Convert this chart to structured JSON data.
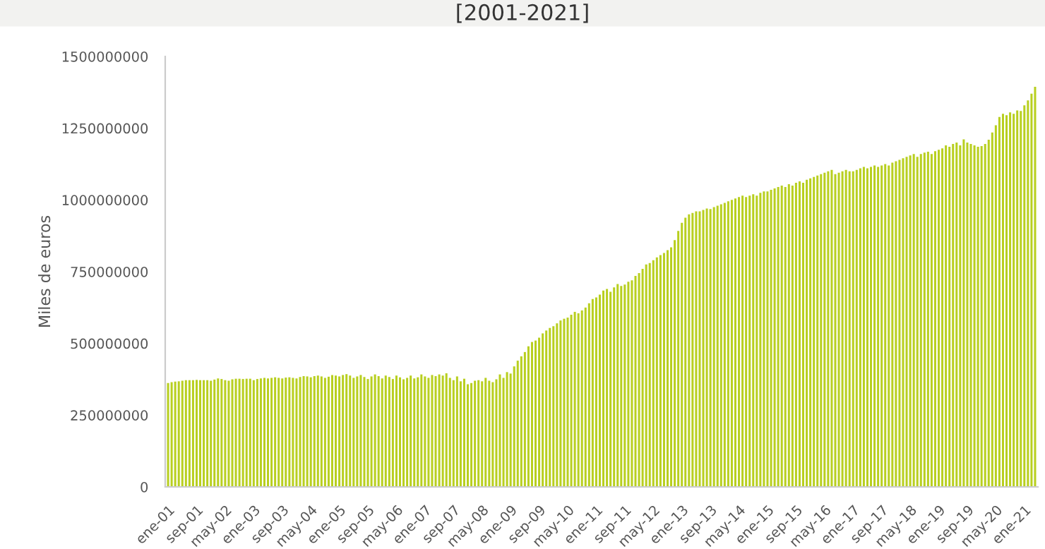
{
  "chart_data": {
    "type": "bar",
    "title": "[2001-2021]",
    "ylabel": "Miles de euros",
    "categories": [
      "ene-01",
      null,
      null,
      null,
      null,
      null,
      null,
      null,
      "sep-01",
      null,
      null,
      null,
      null,
      null,
      null,
      null,
      "may-02",
      null,
      null,
      null,
      null,
      null,
      null,
      null,
      "ene-03",
      null,
      null,
      null,
      null,
      null,
      null,
      null,
      "sep-03",
      null,
      null,
      null,
      null,
      null,
      null,
      null,
      "may-04",
      null,
      null,
      null,
      null,
      null,
      null,
      null,
      "ene-05",
      null,
      null,
      null,
      null,
      null,
      null,
      null,
      "sep-05",
      null,
      null,
      null,
      null,
      null,
      null,
      null,
      "may-06",
      null,
      null,
      null,
      null,
      null,
      null,
      null,
      "ene-07",
      null,
      null,
      null,
      null,
      null,
      null,
      null,
      "sep-07",
      null,
      null,
      null,
      null,
      null,
      null,
      null,
      "may-08",
      null,
      null,
      null,
      null,
      null,
      null,
      null,
      "ene-09",
      null,
      null,
      null,
      null,
      null,
      null,
      null,
      "sep-09",
      null,
      null,
      null,
      null,
      null,
      null,
      null,
      "may-10",
      null,
      null,
      null,
      null,
      null,
      null,
      null,
      "ene-11",
      null,
      null,
      null,
      null,
      null,
      null,
      null,
      "sep-11",
      null,
      null,
      null,
      null,
      null,
      null,
      null,
      "may-12",
      null,
      null,
      null,
      null,
      null,
      null,
      null,
      "ene-13",
      null,
      null,
      null,
      null,
      null,
      null,
      null,
      "sep-13",
      null,
      null,
      null,
      null,
      null,
      null,
      null,
      "may-14",
      null,
      null,
      null,
      null,
      null,
      null,
      null,
      "ene-15",
      null,
      null,
      null,
      null,
      null,
      null,
      null,
      "sep-15",
      null,
      null,
      null,
      null,
      null,
      null,
      null,
      "may-16",
      null,
      null,
      null,
      null,
      null,
      null,
      null,
      "ene-17",
      null,
      null,
      null,
      null,
      null,
      null,
      null,
      "sep-17",
      null,
      null,
      null,
      null,
      null,
      null,
      null,
      "may-18",
      null,
      null,
      null,
      null,
      null,
      null,
      null,
      "ene-19",
      null,
      null,
      null,
      null,
      null,
      null,
      null,
      "sep-19",
      null,
      null,
      null,
      null,
      null,
      null,
      null,
      "may-20",
      null,
      null,
      null,
      null,
      null,
      null,
      null,
      "ene-21",
      null,
      null,
      null
    ],
    "values": [
      362000000,
      365000000,
      367000000,
      368000000,
      370000000,
      372000000,
      372000000,
      372000000,
      373000000,
      372000000,
      372000000,
      372000000,
      370000000,
      374000000,
      378000000,
      376000000,
      372000000,
      370000000,
      375000000,
      377000000,
      377000000,
      376000000,
      377000000,
      377000000,
      372000000,
      376000000,
      378000000,
      380000000,
      378000000,
      380000000,
      382000000,
      380000000,
      378000000,
      381000000,
      382000000,
      380000000,
      378000000,
      383000000,
      386000000,
      385000000,
      382000000,
      386000000,
      388000000,
      385000000,
      380000000,
      384000000,
      390000000,
      388000000,
      385000000,
      390000000,
      393000000,
      388000000,
      380000000,
      385000000,
      390000000,
      383000000,
      376000000,
      385000000,
      392000000,
      386000000,
      378000000,
      388000000,
      383000000,
      376000000,
      388000000,
      382000000,
      375000000,
      380000000,
      388000000,
      378000000,
      382000000,
      392000000,
      385000000,
      380000000,
      390000000,
      386000000,
      392000000,
      388000000,
      396000000,
      380000000,
      372000000,
      385000000,
      368000000,
      377000000,
      358000000,
      362000000,
      370000000,
      372000000,
      368000000,
      380000000,
      370000000,
      365000000,
      375000000,
      392000000,
      380000000,
      400000000,
      395000000,
      420000000,
      440000000,
      455000000,
      470000000,
      490000000,
      505000000,
      510000000,
      520000000,
      535000000,
      545000000,
      554000000,
      560000000,
      570000000,
      580000000,
      586000000,
      590000000,
      600000000,
      610000000,
      605000000,
      615000000,
      625000000,
      640000000,
      655000000,
      660000000,
      670000000,
      684000000,
      690000000,
      680000000,
      695000000,
      707000000,
      700000000,
      705000000,
      715000000,
      720000000,
      735000000,
      745000000,
      760000000,
      775000000,
      780000000,
      790000000,
      800000000,
      808000000,
      815000000,
      825000000,
      835000000,
      860000000,
      892000000,
      920000000,
      938000000,
      950000000,
      955000000,
      960000000,
      960000000,
      965000000,
      970000000,
      968000000,
      975000000,
      980000000,
      985000000,
      990000000,
      995000000,
      1000000000,
      1005000000,
      1010000000,
      1015000000,
      1010000000,
      1015000000,
      1020000000,
      1015000000,
      1025000000,
      1030000000,
      1030000000,
      1035000000,
      1040000000,
      1045000000,
      1050000000,
      1045000000,
      1055000000,
      1050000000,
      1060000000,
      1065000000,
      1060000000,
      1070000000,
      1075000000,
      1080000000,
      1085000000,
      1090000000,
      1095000000,
      1100000000,
      1105000000,
      1090000000,
      1095000000,
      1100000000,
      1105000000,
      1100000000,
      1100000000,
      1105000000,
      1110000000,
      1115000000,
      1110000000,
      1115000000,
      1120000000,
      1115000000,
      1120000000,
      1125000000,
      1120000000,
      1130000000,
      1135000000,
      1140000000,
      1145000000,
      1150000000,
      1155000000,
      1160000000,
      1150000000,
      1160000000,
      1165000000,
      1168000000,
      1160000000,
      1170000000,
      1175000000,
      1180000000,
      1190000000,
      1185000000,
      1195000000,
      1200000000,
      1190000000,
      1211000000,
      1200000000,
      1195000000,
      1190000000,
      1185000000,
      1188000000,
      1195000000,
      1210000000,
      1235000000,
      1260000000,
      1289000000,
      1300000000,
      1295000000,
      1305000000,
      1300000000,
      1312000000,
      1310000000,
      1330000000,
      1347000000,
      1370000000,
      1394000000
    ],
    "color": "#b8cf1f",
    "ylim": [
      0,
      1500000000
    ],
    "yticks": [
      0,
      250000000,
      500000000,
      750000000,
      1000000000,
      1250000000,
      1500000000
    ],
    "grid": false,
    "legend": false
  }
}
